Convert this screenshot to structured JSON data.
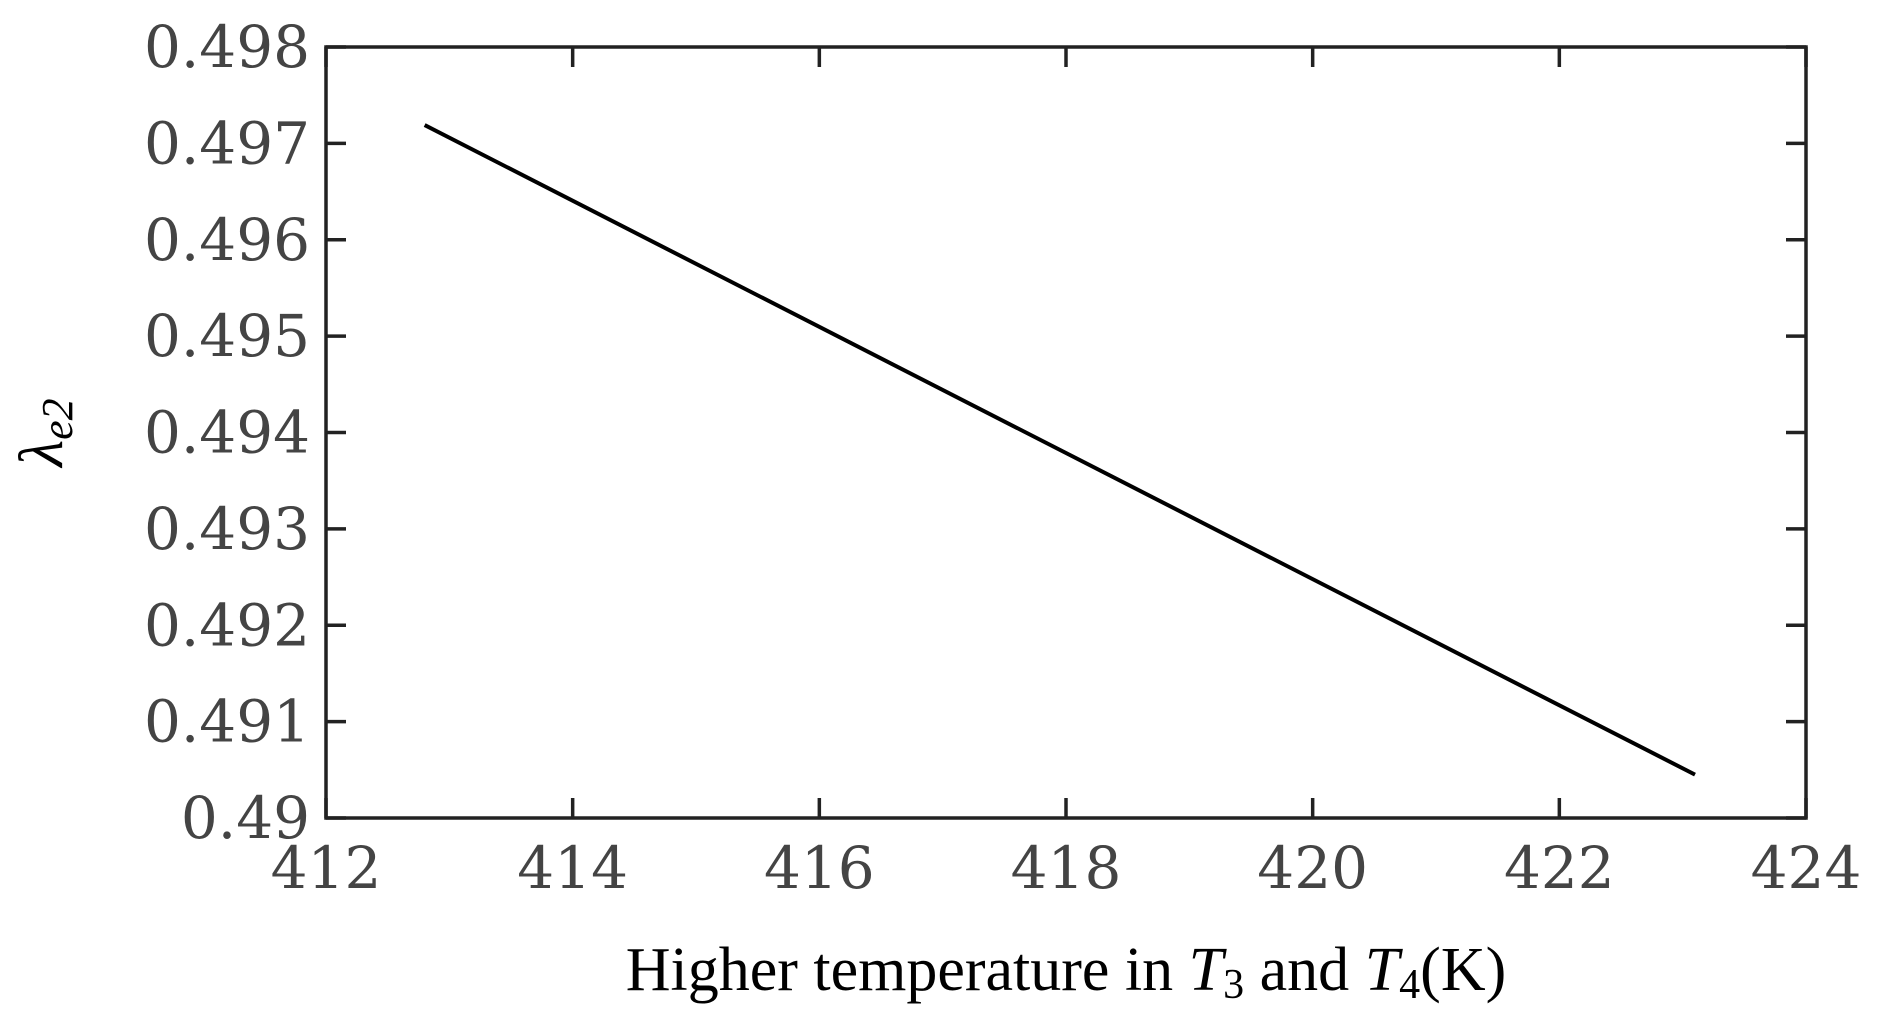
{
  "chart_data": {
    "type": "line",
    "title": "",
    "xlabel": {
      "prefix": "Higher temperature in ",
      "var1": "T",
      "sub1": "3",
      "middle": " and ",
      "var2": "T",
      "sub2": "4",
      "suffix": "(K)"
    },
    "ylabel": {
      "symbol": "λ",
      "subscript": "e2"
    },
    "xlim": [
      412,
      424
    ],
    "ylim": [
      0.49,
      0.498
    ],
    "xticks": [
      412,
      414,
      416,
      418,
      420,
      422,
      424
    ],
    "xtick_labels": [
      "412",
      "414",
      "416",
      "418",
      "420",
      "422",
      "424"
    ],
    "yticks": [
      0.49,
      0.491,
      0.492,
      0.493,
      0.494,
      0.495,
      0.496,
      0.497,
      0.498
    ],
    "ytick_labels": [
      "0.49",
      "0.491",
      "0.492",
      "0.493",
      "0.494",
      "0.495",
      "0.496",
      "0.497",
      "0.498"
    ],
    "grid": false,
    "line_color": "#000000",
    "series": [
      {
        "x": [
          412.8,
          423.1
        ],
        "y": [
          0.49719,
          0.49045
        ]
      }
    ]
  }
}
